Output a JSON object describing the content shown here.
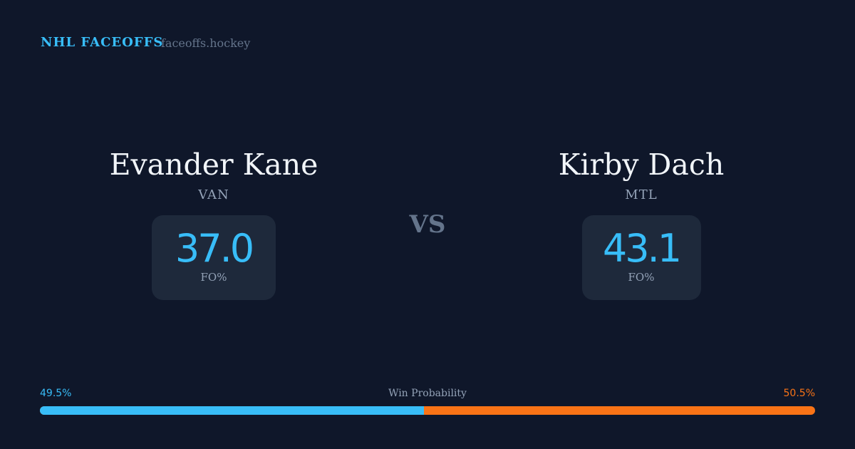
{
  "header": {
    "brand": "NHL FACEOFFS",
    "site": "faceoffs.hockey"
  },
  "players": [
    {
      "name": "Evander Kane",
      "team": "VAN",
      "fo_pct": "37.0",
      "fo_label": "FO%"
    },
    {
      "name": "Kirby Dach",
      "team": "MTL",
      "fo_pct": "43.1",
      "fo_label": "FO%"
    }
  ],
  "vs": "VS",
  "win_probability": {
    "label": "Win Probability",
    "left": "49.5%",
    "right": "50.5%",
    "left_value": 49.5,
    "colors": {
      "left": "#38bdf8",
      "right": "#f97316"
    }
  }
}
